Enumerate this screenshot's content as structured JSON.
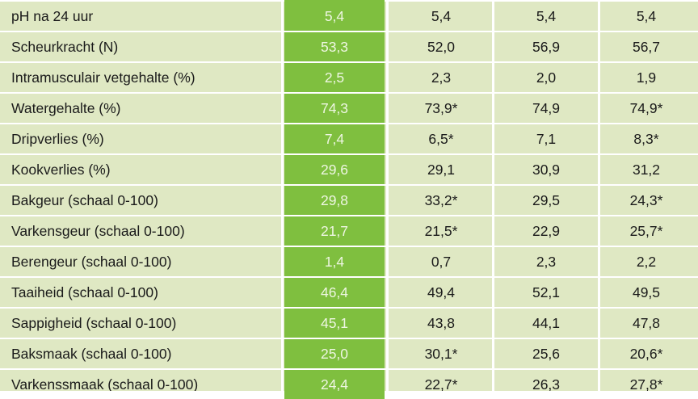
{
  "rows": [
    {
      "label": "pH na 24 uur",
      "values": [
        "5,4",
        "5,4",
        "5,4",
        "5,4"
      ]
    },
    {
      "label": "Scheurkracht (N)",
      "values": [
        "53,3",
        "52,0",
        "56,9",
        "56,7"
      ]
    },
    {
      "label": "Intramusculair vetgehalte (%)",
      "values": [
        "2,5",
        "2,3",
        "2,0",
        "1,9"
      ]
    },
    {
      "label": "Watergehalte (%)",
      "values": [
        "74,3",
        "73,9*",
        "74,9",
        "74,9*"
      ]
    },
    {
      "label": "Dripverlies (%)",
      "values": [
        "7,4",
        "6,5*",
        "7,1",
        "8,3*"
      ]
    },
    {
      "label": "Kookverlies (%)",
      "values": [
        "29,6",
        "29,1",
        "30,9",
        "31,2"
      ]
    },
    {
      "label": "Bakgeur (schaal 0-100)",
      "values": [
        "29,8",
        "33,2*",
        "29,5",
        "24,3*"
      ]
    },
    {
      "label": "Varkensgeur (schaal 0-100)",
      "values": [
        "21,7",
        "21,5*",
        "22,9",
        "25,7*"
      ]
    },
    {
      "label": "Berengeur (schaal 0-100)",
      "values": [
        "1,4",
        "0,7",
        "2,3",
        "2,2"
      ]
    },
    {
      "label": "Taaiheid (schaal 0-100)",
      "values": [
        "46,4",
        "49,4",
        "52,1",
        "49,5"
      ]
    },
    {
      "label": "Sappigheid (schaal 0-100)",
      "values": [
        "45,1",
        "43,8",
        "44,1",
        "47,8"
      ]
    },
    {
      "label": "Baksmaak (schaal 0-100)",
      "values": [
        "25,0",
        "30,1*",
        "25,6",
        "20,6*"
      ]
    },
    {
      "label": "Varkenssmaak (schaal 0-100)",
      "values": [
        "24,4",
        "22,7*",
        "26,3",
        "27,8*"
      ]
    }
  ],
  "colors": {
    "row_background": "#dfe8c3",
    "highlight_column": "#7fbf3f",
    "separator": "#ffffff"
  }
}
